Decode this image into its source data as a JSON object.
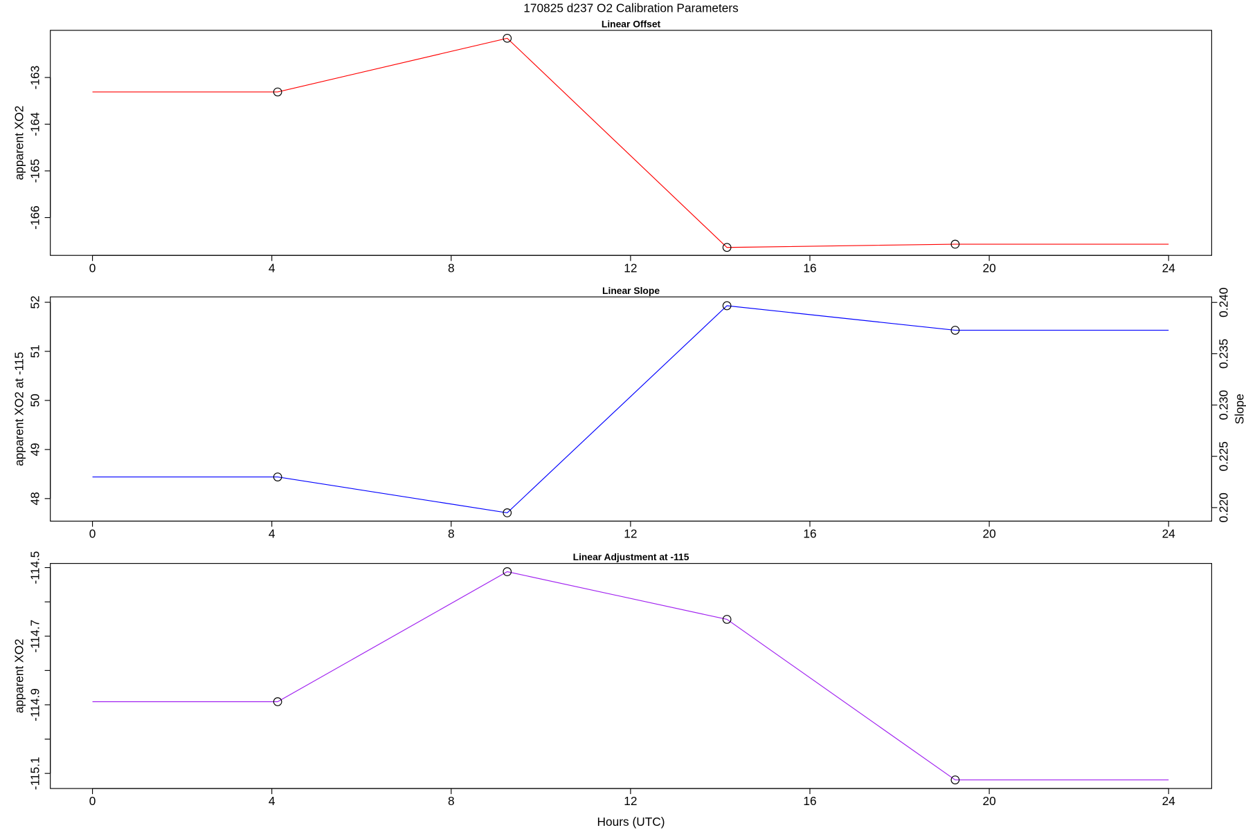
{
  "title": "170825   d237   O2 Calibration Parameters",
  "chart_data": [
    {
      "type": "line",
      "title": "Linear Offset",
      "ylabel": "apparent XO2",
      "x": [
        0,
        4.13,
        9.25,
        14.15,
        19.24,
        24
      ],
      "values": [
        -163.31,
        -163.31,
        -162.16,
        -166.64,
        -166.57,
        -166.57
      ],
      "markers": [
        false,
        true,
        true,
        true,
        true,
        false
      ],
      "color": "#ff0000",
      "xlim": [
        -0.94,
        24.96
      ],
      "xticks": [
        0,
        4,
        8,
        12,
        16,
        20,
        24
      ],
      "ylim": [
        -166.81,
        -161.99
      ],
      "yticks": [
        -163,
        -164,
        -165,
        -166
      ]
    },
    {
      "type": "line",
      "title": "Linear Slope",
      "ylabel": "apparent XO2 at -115",
      "y2label": "Slope",
      "x": [
        0,
        4.13,
        9.25,
        14.15,
        19.24,
        24
      ],
      "values": [
        48.44,
        48.44,
        47.71,
        51.93,
        51.43,
        51.43
      ],
      "markers": [
        false,
        true,
        true,
        true,
        true,
        false
      ],
      "color": "#0000ff",
      "xlim": [
        -0.94,
        24.96
      ],
      "xticks": [
        0,
        4,
        8,
        12,
        16,
        20,
        24
      ],
      "ylim": [
        47.54,
        52.11
      ],
      "yticks": [
        48,
        49,
        50,
        51,
        52
      ],
      "y2lim": [
        0.21868,
        0.24054
      ],
      "y2ticks": [
        {
          "value": 0.22,
          "label": "0.220"
        },
        0.225,
        {
          "value": 0.23,
          "label": "0.230"
        },
        0.235,
        {
          "value": 0.24,
          "label": "0.240"
        }
      ]
    },
    {
      "type": "line",
      "title": "Linear Adjustment at -115",
      "ylabel": "apparent XO2",
      "xlabel": "Hours (UTC)",
      "x": [
        0,
        4.13,
        9.25,
        14.15,
        19.24,
        24
      ],
      "values": [
        -114.891,
        -114.891,
        -114.512,
        -114.651,
        -115.119,
        -115.119
      ],
      "markers": [
        false,
        true,
        true,
        true,
        true,
        false
      ],
      "color": "#a020f0",
      "xlim": [
        -0.94,
        24.96
      ],
      "xticks": [
        0,
        4,
        8,
        12,
        16,
        20,
        24
      ],
      "ylim": [
        -115.144,
        -114.488
      ],
      "yticks": [
        -114.5,
        -114.7,
        -114.9,
        -115.1
      ],
      "yminor_ticks": [
        -114.6,
        -114.8,
        -115.0
      ]
    }
  ]
}
